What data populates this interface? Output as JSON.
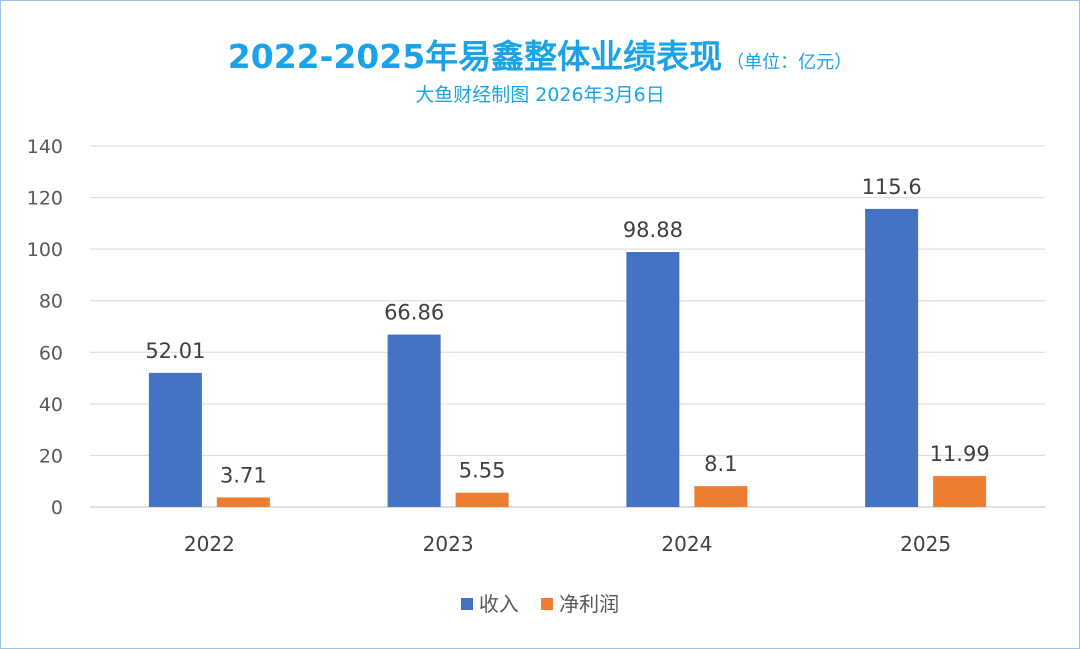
{
  "title": {
    "main": "2022-2025年易鑫整体业绩表现",
    "unit": "（单位：亿元）",
    "subtitle": "大鱼财经制图 2026年3月6日"
  },
  "legend": [
    {
      "label": "收入",
      "color": "#4472c4"
    },
    {
      "label": "净利润",
      "color": "#ed7d31"
    }
  ],
  "chart_data": {
    "type": "bar",
    "categories": [
      "2022",
      "2023",
      "2024",
      "2025"
    ],
    "series": [
      {
        "name": "收入",
        "color": "#4472c4",
        "values": [
          52.01,
          66.86,
          98.88,
          115.6
        ],
        "labels": [
          "52.01",
          "66.86",
          "98.88",
          "115.6"
        ]
      },
      {
        "name": "净利润",
        "color": "#ed7d31",
        "values": [
          3.71,
          5.55,
          8.1,
          11.99
        ],
        "labels": [
          "3.71",
          "5.55",
          "8.1",
          "11.99"
        ]
      }
    ],
    "ylim": [
      0,
      140
    ],
    "yticks": [
      0,
      20,
      40,
      60,
      80,
      100,
      120,
      140
    ],
    "grid": true,
    "legend_position": "bottom"
  }
}
